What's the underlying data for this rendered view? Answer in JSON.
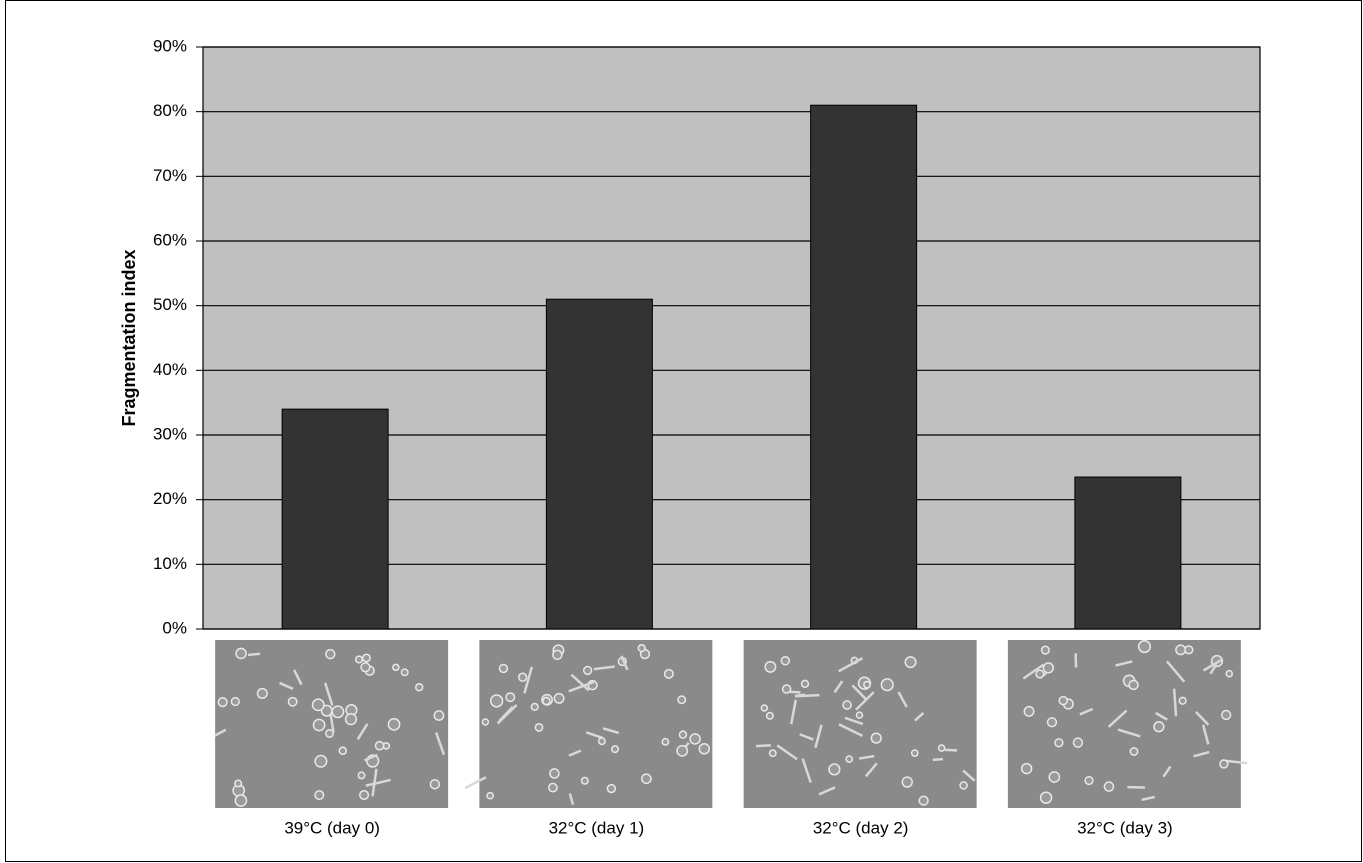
{
  "chart_data": {
    "type": "bar",
    "y_label": "Fragmentation index",
    "categories": [
      "39°C (day 0)",
      "32°C (day 1)",
      "32°C (day 2)",
      "32°C (day 3)"
    ],
    "values": [
      34,
      51,
      81,
      23.5
    ],
    "color": "#333333",
    "plot_background": "#c0c0c0",
    "ylim": [
      0,
      90
    ],
    "yticks": [
      {
        "value": 0,
        "label": "0%"
      },
      {
        "value": 10,
        "label": "10%"
      },
      {
        "value": 20,
        "label": "20%"
      },
      {
        "value": 30,
        "label": "30%"
      },
      {
        "value": 40,
        "label": "40%"
      },
      {
        "value": 50,
        "label": "50%"
      },
      {
        "value": 60,
        "label": "60%"
      },
      {
        "value": 70,
        "label": "70%"
      },
      {
        "value": 80,
        "label": "80%"
      },
      {
        "value": 90,
        "label": "90%"
      }
    ],
    "grid": true
  }
}
